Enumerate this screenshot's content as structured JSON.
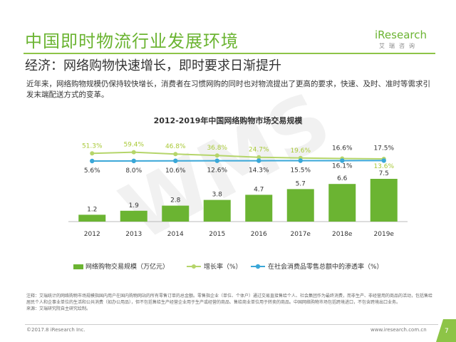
{
  "header": {
    "title": "中国即时物流行业发展环境",
    "subtitle": "经济：网络购物快速增长，即时要求日渐提升",
    "logo_word": "iResearch",
    "logo_sub": "艾瑞咨询"
  },
  "intro_text": "近年来，网络购物规模仍保持较快增长，消费者在习惯网购的同时也对物流提出了更高的要求，快速、及时、准时等需求引发末端配送方式的变革。",
  "watermark": "WMS",
  "chart_data": {
    "type": "bar",
    "title": "2012-2019年中国网络购物市场交易规模",
    "categories": [
      "2012",
      "2013",
      "2014",
      "2015",
      "2016",
      "2017e",
      "2018e",
      "2019e"
    ],
    "series": [
      {
        "name": "网络购物交易规模（万亿元）",
        "kind": "bar",
        "values": [
          1.2,
          1.9,
          2.8,
          3.8,
          4.7,
          5.7,
          6.6,
          7.5
        ],
        "labels": [
          "1.2",
          "1.9",
          "2.8",
          "3.8",
          "4.7",
          "5.7",
          "6.6",
          "7.5"
        ],
        "color": "#6bb432"
      },
      {
        "name": "增长率（%）",
        "kind": "line",
        "values": [
          51.3,
          59.4,
          46.8,
          36.8,
          24.7,
          19.6,
          16.1,
          13.6
        ],
        "labels": [
          "51.3%",
          "59.4%",
          "46.8%",
          "36.8%",
          "24.7%",
          "19.6%",
          "16.1%",
          "13.6%"
        ],
        "color": "#b5d56a",
        "label_color": "#a9c938"
      },
      {
        "name": "在社会消费品零售总额中的渗透率（%）",
        "kind": "line",
        "values": [
          5.6,
          8.0,
          10.6,
          12.6,
          14.3,
          15.5,
          16.6,
          17.5
        ],
        "labels": [
          "5.6%",
          "8.0%",
          "10.6%",
          "12.6%",
          "14.3%",
          "15.5%",
          "16.6%",
          "17.5%"
        ],
        "color": "#3aa7d8",
        "label_color": "#333333"
      }
    ],
    "legend_position": "bottom",
    "grid": false
  },
  "footnote": "注释：艾瑞统计的网络购物市场规模指国内用户在国内购物网站的所有零售订单的总金额。零售指企业（单位、个体户）通过交易直接售给个人、社会集团作为最终消费，而非生产、非经营用的商品的活动，包括售给居民个人和企事业单位的生活和公共消费（如办公用品），但不包括售给生产经营企业用于生产或经营的商品、售给商业单位用于转卖的商品。中国网络购物市场包括跨境进口，不包含跨境出口业务。\n来源：艾瑞研究院自主研究绘制。",
  "footer": {
    "copyright": "©2017.8 iResearch Inc.",
    "website": "www.iresearch.com.cn",
    "page_number": "7"
  },
  "colors": {
    "brand_green": "#6bb432",
    "page_tab": "#8dc447"
  }
}
